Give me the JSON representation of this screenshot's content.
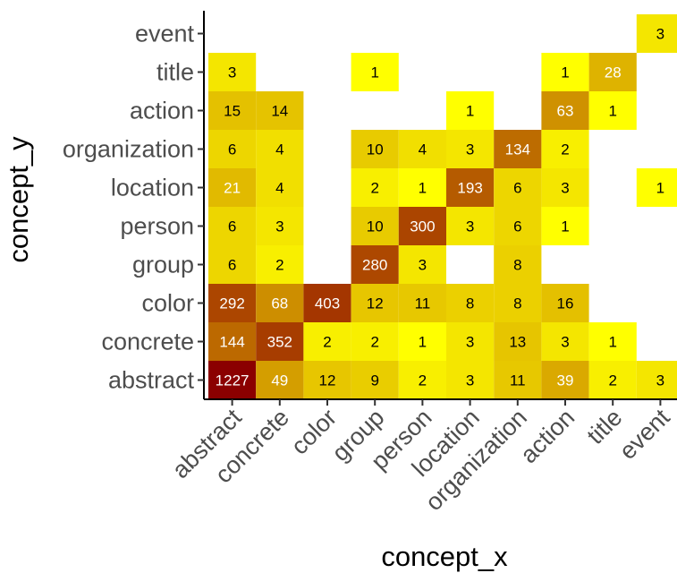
{
  "chart_data": {
    "type": "heatmap",
    "xlabel": "concept_x",
    "ylabel": "concept_y",
    "x_categories": [
      "abstract",
      "concrete",
      "color",
      "group",
      "person",
      "location",
      "organization",
      "action",
      "title",
      "event"
    ],
    "y_categories": [
      "abstract",
      "concrete",
      "color",
      "group",
      "person",
      "location",
      "organization",
      "action",
      "title",
      "event"
    ],
    "cells": [
      {
        "x": "abstract",
        "y": "abstract",
        "value": 1227
      },
      {
        "x": "concrete",
        "y": "abstract",
        "value": 49
      },
      {
        "x": "color",
        "y": "abstract",
        "value": 12
      },
      {
        "x": "group",
        "y": "abstract",
        "value": 9
      },
      {
        "x": "person",
        "y": "abstract",
        "value": 2
      },
      {
        "x": "location",
        "y": "abstract",
        "value": 3
      },
      {
        "x": "organization",
        "y": "abstract",
        "value": 11
      },
      {
        "x": "action",
        "y": "abstract",
        "value": 39
      },
      {
        "x": "title",
        "y": "abstract",
        "value": 2
      },
      {
        "x": "event",
        "y": "abstract",
        "value": 3
      },
      {
        "x": "abstract",
        "y": "concrete",
        "value": 144
      },
      {
        "x": "concrete",
        "y": "concrete",
        "value": 352
      },
      {
        "x": "color",
        "y": "concrete",
        "value": 2
      },
      {
        "x": "group",
        "y": "concrete",
        "value": 2
      },
      {
        "x": "person",
        "y": "concrete",
        "value": 1
      },
      {
        "x": "location",
        "y": "concrete",
        "value": 3
      },
      {
        "x": "organization",
        "y": "concrete",
        "value": 13
      },
      {
        "x": "action",
        "y": "concrete",
        "value": 3
      },
      {
        "x": "title",
        "y": "concrete",
        "value": 1
      },
      {
        "x": "abstract",
        "y": "color",
        "value": 292
      },
      {
        "x": "concrete",
        "y": "color",
        "value": 68
      },
      {
        "x": "color",
        "y": "color",
        "value": 403
      },
      {
        "x": "group",
        "y": "color",
        "value": 12
      },
      {
        "x": "person",
        "y": "color",
        "value": 11
      },
      {
        "x": "location",
        "y": "color",
        "value": 8
      },
      {
        "x": "organization",
        "y": "color",
        "value": 8
      },
      {
        "x": "action",
        "y": "color",
        "value": 16
      },
      {
        "x": "abstract",
        "y": "group",
        "value": 6
      },
      {
        "x": "concrete",
        "y": "group",
        "value": 2
      },
      {
        "x": "group",
        "y": "group",
        "value": 280
      },
      {
        "x": "person",
        "y": "group",
        "value": 3
      },
      {
        "x": "organization",
        "y": "group",
        "value": 8
      },
      {
        "x": "abstract",
        "y": "person",
        "value": 6
      },
      {
        "x": "concrete",
        "y": "person",
        "value": 3
      },
      {
        "x": "group",
        "y": "person",
        "value": 10
      },
      {
        "x": "person",
        "y": "person",
        "value": 300
      },
      {
        "x": "location",
        "y": "person",
        "value": 3
      },
      {
        "x": "organization",
        "y": "person",
        "value": 6
      },
      {
        "x": "action",
        "y": "person",
        "value": 1
      },
      {
        "x": "abstract",
        "y": "location",
        "value": 21
      },
      {
        "x": "concrete",
        "y": "location",
        "value": 4
      },
      {
        "x": "group",
        "y": "location",
        "value": 2
      },
      {
        "x": "person",
        "y": "location",
        "value": 1
      },
      {
        "x": "location",
        "y": "location",
        "value": 193
      },
      {
        "x": "organization",
        "y": "location",
        "value": 6
      },
      {
        "x": "action",
        "y": "location",
        "value": 3
      },
      {
        "x": "event",
        "y": "location",
        "value": 1
      },
      {
        "x": "abstract",
        "y": "organization",
        "value": 6
      },
      {
        "x": "concrete",
        "y": "organization",
        "value": 4
      },
      {
        "x": "group",
        "y": "organization",
        "value": 10
      },
      {
        "x": "person",
        "y": "organization",
        "value": 4
      },
      {
        "x": "location",
        "y": "organization",
        "value": 3
      },
      {
        "x": "organization",
        "y": "organization",
        "value": 134
      },
      {
        "x": "action",
        "y": "organization",
        "value": 2
      },
      {
        "x": "abstract",
        "y": "action",
        "value": 15
      },
      {
        "x": "concrete",
        "y": "action",
        "value": 14
      },
      {
        "x": "location",
        "y": "action",
        "value": 1
      },
      {
        "x": "action",
        "y": "action",
        "value": 63
      },
      {
        "x": "title",
        "y": "action",
        "value": 1
      },
      {
        "x": "abstract",
        "y": "title",
        "value": 3
      },
      {
        "x": "group",
        "y": "title",
        "value": 1
      },
      {
        "x": "action",
        "y": "title",
        "value": 1
      },
      {
        "x": "title",
        "y": "title",
        "value": 28
      },
      {
        "x": "event",
        "y": "event",
        "value": 3
      }
    ],
    "color_scale": {
      "low": "#ffff00",
      "mid": "#dcae00",
      "high": "#8b0000",
      "scale": "log"
    },
    "grid": false,
    "legend": "none"
  }
}
